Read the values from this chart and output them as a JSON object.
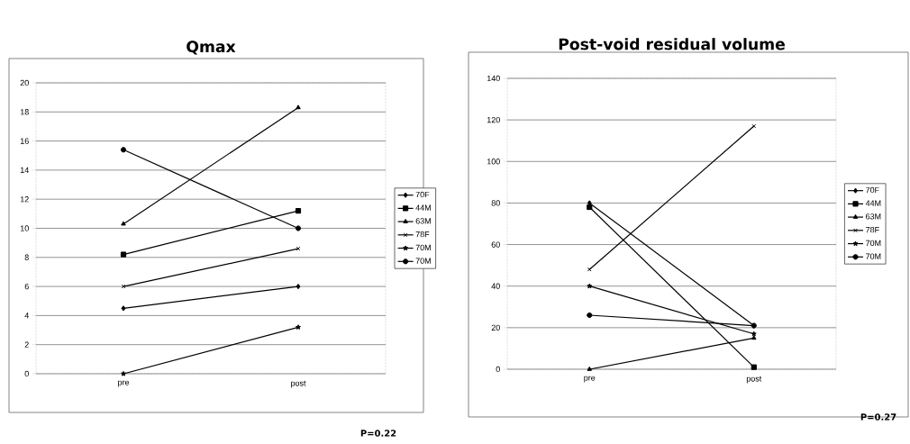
{
  "chart_data": [
    {
      "type": "line",
      "title": "Qmax",
      "categories": [
        "pre",
        "post"
      ],
      "ylim": [
        0,
        20
      ],
      "yticks": [
        0,
        2,
        4,
        6,
        8,
        10,
        12,
        14,
        16,
        18,
        20
      ],
      "grid": "y",
      "legend": "right",
      "line_style": "solid",
      "annotations": [
        "P=0.22"
      ],
      "series": [
        {
          "name": "70F",
          "color": "#000000",
          "marker": "diamond",
          "values": [
            4.5,
            6
          ]
        },
        {
          "name": "44M",
          "color": "#000000",
          "marker": "square",
          "values": [
            8.2,
            11.2
          ]
        },
        {
          "name": "63M",
          "color": "#000000",
          "marker": "triangle",
          "values": [
            10.3,
            18.3
          ]
        },
        {
          "name": "78F",
          "color": "#000000",
          "marker": "cross",
          "values": [
            6,
            8.6
          ]
        },
        {
          "name": "70M",
          "color": "#000000",
          "marker": "star",
          "values": [
            0,
            3.2
          ]
        },
        {
          "name": "70M",
          "color": "#000000",
          "marker": "circle",
          "values": [
            15.4,
            10
          ]
        }
      ]
    },
    {
      "type": "line",
      "title": "Post-void residual volume",
      "categories": [
        "pre",
        "post"
      ],
      "ylim": [
        0,
        140
      ],
      "yticks": [
        0,
        20,
        40,
        60,
        80,
        100,
        120,
        140
      ],
      "grid": "y",
      "legend": "right",
      "line_style": "solid",
      "annotations": [
        "P=0.27"
      ],
      "series": [
        {
          "name": "70F",
          "color": "#000000",
          "marker": "diamond",
          "values": [
            80,
            21
          ]
        },
        {
          "name": "44M",
          "color": "#000000",
          "marker": "square",
          "values": [
            78,
            1
          ]
        },
        {
          "name": "63M",
          "color": "#000000",
          "marker": "triangle",
          "values": [
            0,
            15
          ]
        },
        {
          "name": "78F",
          "color": "#000000",
          "marker": "cross",
          "values": [
            48,
            117
          ]
        },
        {
          "name": "70M",
          "color": "#000000",
          "marker": "star",
          "values": [
            40,
            17
          ]
        },
        {
          "name": "70M",
          "color": "#000000",
          "marker": "circle",
          "values": [
            26,
            21
          ]
        }
      ]
    }
  ]
}
